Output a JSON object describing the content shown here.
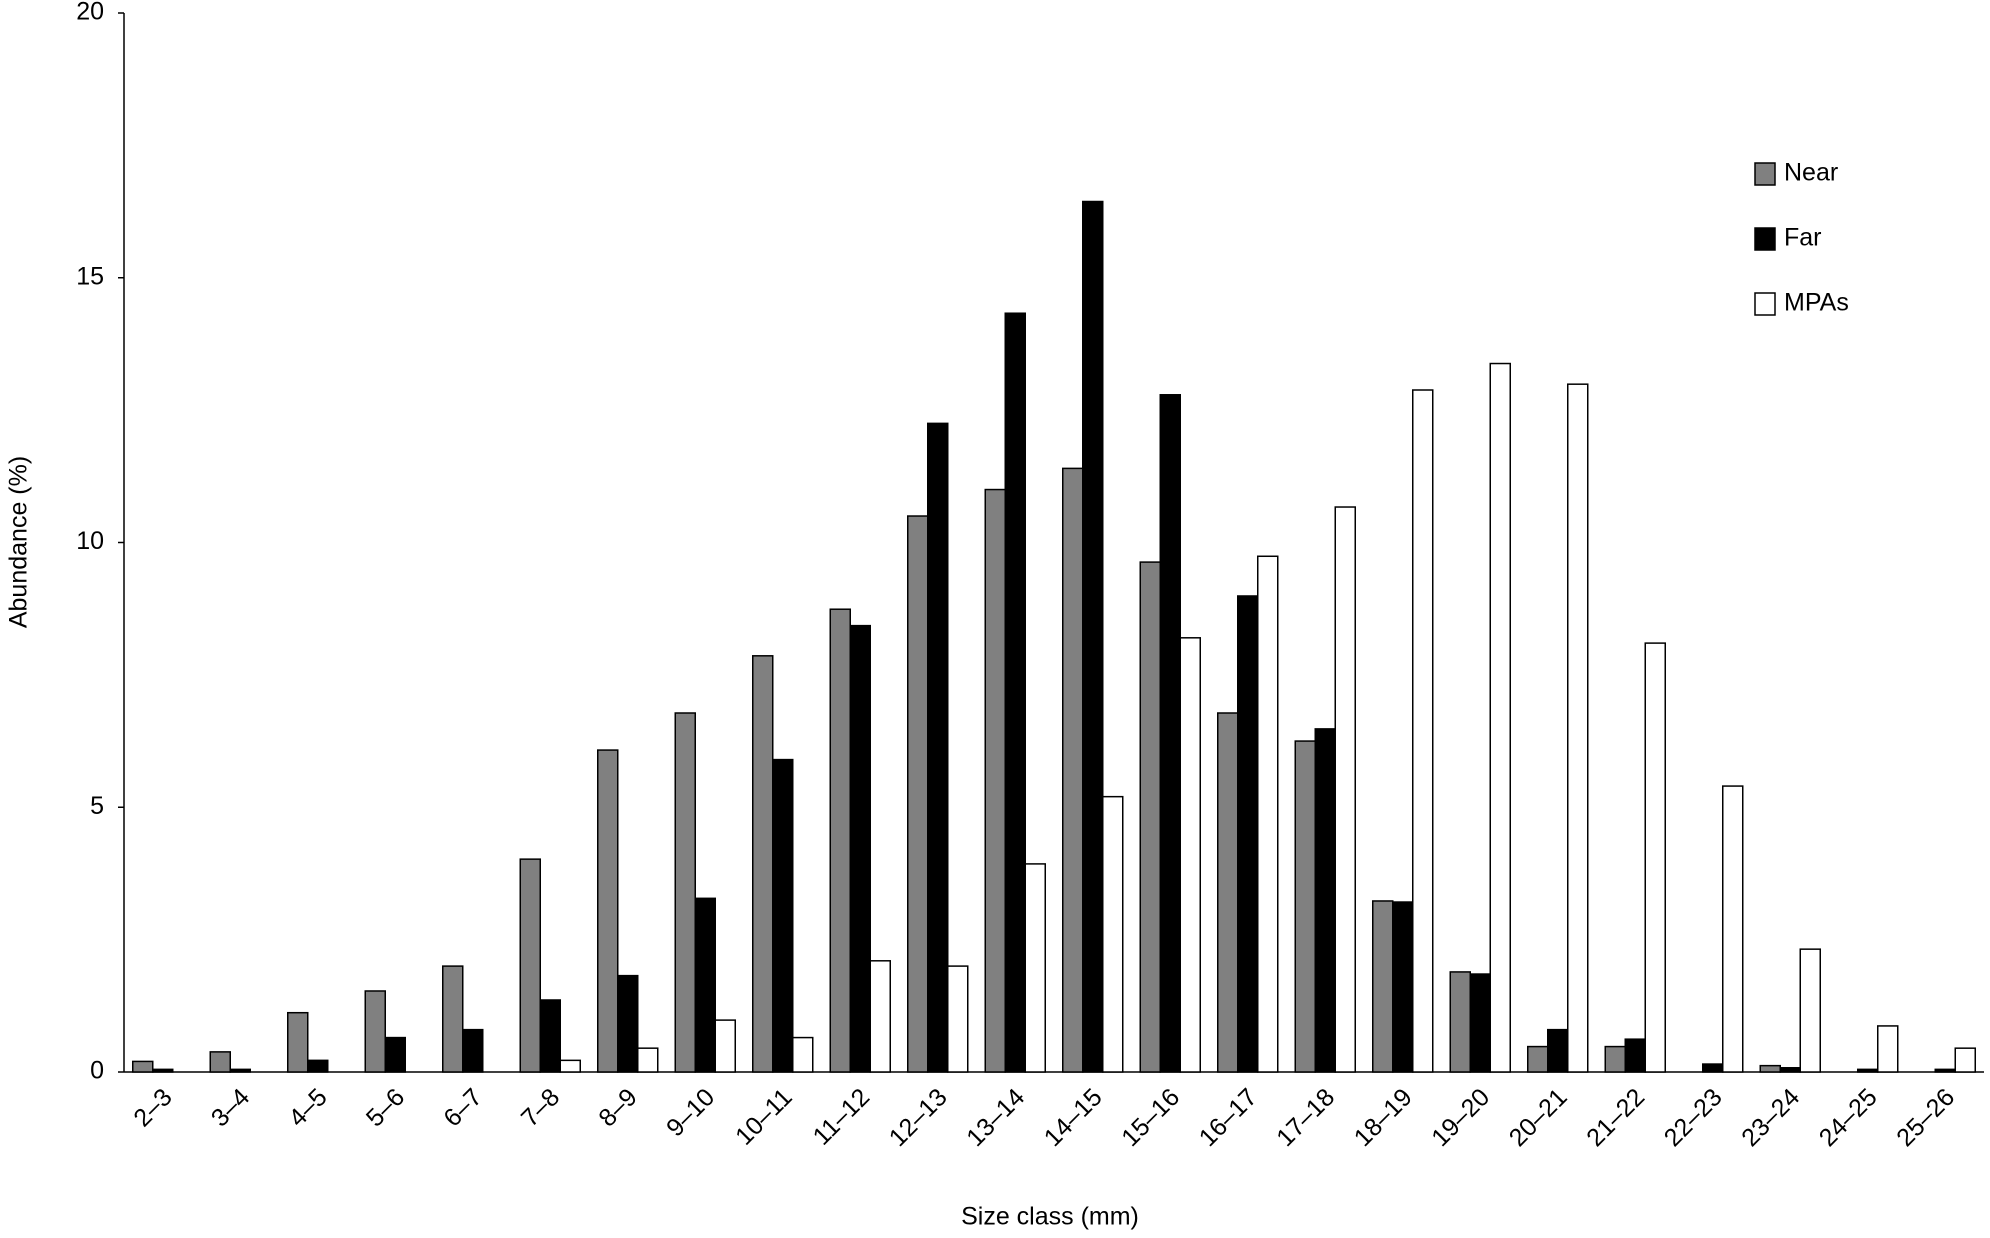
{
  "chart_data": {
    "type": "bar",
    "x_label": "Size class (mm)",
    "y_label": "Abundance (%)",
    "categories": [
      "2–3",
      "3–4",
      "4–5",
      "5–6",
      "6–7",
      "7–8",
      "8–9",
      "9–10",
      "10–11",
      "11–12",
      "12–13",
      "13–14",
      "14–15",
      "15–16",
      "16–17",
      "17–18",
      "18–19",
      "19–20",
      "20–21",
      "21–22",
      "22–23",
      "23–24",
      "24–25",
      "25–26"
    ],
    "series": [
      {
        "name": "Near",
        "color": "#808080",
        "values": [
          0.2,
          0.38,
          1.12,
          1.53,
          2.0,
          4.02,
          6.08,
          6.78,
          7.86,
          8.74,
          10.5,
          11.0,
          11.4,
          9.63,
          6.78,
          6.25,
          3.23,
          1.89,
          0.48,
          0.48,
          0,
          0.12,
          0,
          0
        ]
      },
      {
        "name": "Far",
        "color": "#000000",
        "values": [
          0.05,
          0.05,
          0.22,
          0.65,
          0.8,
          1.36,
          1.82,
          3.28,
          5.9,
          8.43,
          12.25,
          14.33,
          16.44,
          12.79,
          8.99,
          6.48,
          3.21,
          1.85,
          0.8,
          0.62,
          0.15,
          0.08,
          0.05,
          0.05
        ]
      },
      {
        "name": "MPAs",
        "color": "#ffffff",
        "values": [
          0,
          0,
          0,
          0,
          0,
          0.22,
          0.45,
          0.98,
          0.65,
          2.1,
          2.0,
          3.93,
          5.2,
          8.2,
          9.74,
          10.67,
          12.88,
          13.38,
          12.99,
          8.1,
          5.4,
          2.32,
          0.87,
          0.45
        ]
      }
    ],
    "ylim": [
      0,
      20
    ],
    "yticks": [
      0,
      5,
      10,
      15,
      20
    ],
    "grid": false,
    "legend": "upper right"
  }
}
